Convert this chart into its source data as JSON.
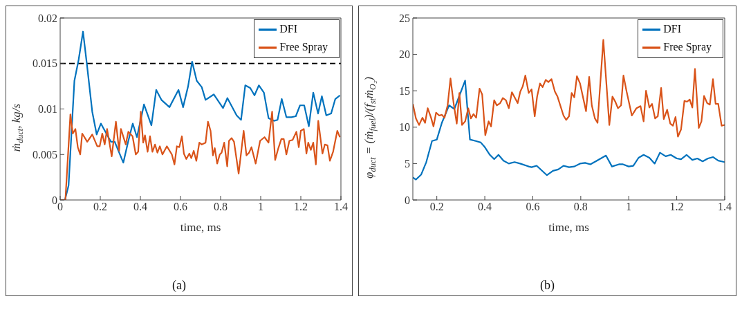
{
  "chart_data": [
    {
      "type": "line",
      "xlabel": "time, ms",
      "ylabel": "ṁ$_{duct}$, kg/s",
      "xlim": [
        0,
        1.4
      ],
      "ylim": [
        0,
        0.02
      ],
      "xticks": [
        0,
        0.2,
        0.4,
        0.6,
        0.8,
        1,
        1.2,
        1.4
      ],
      "yticks": [
        0,
        0.005,
        0.01,
        0.015,
        0.02
      ],
      "grid": false,
      "legend": "top right",
      "marker": "none",
      "line_style": "solid",
      "annotations": [
        "(a)"
      ],
      "ref_lines": [
        {
          "axis": "y",
          "value": 0.015,
          "label": null,
          "color": "#000000",
          "line_style": "dashed"
        }
      ],
      "series": [
        {
          "name": "DFI",
          "color": "#0072bd",
          "x": [
            0.024,
            0.042,
            0.071,
            0.092,
            0.114,
            0.135,
            0.16,
            0.182,
            0.203,
            0.228,
            0.253,
            0.272,
            0.315,
            0.34,
            0.362,
            0.383,
            0.418,
            0.455,
            0.479,
            0.505,
            0.545,
            0.59,
            0.613,
            0.638,
            0.658,
            0.681,
            0.706,
            0.725,
            0.766,
            0.812,
            0.834,
            0.88,
            0.902,
            0.923,
            0.948,
            0.969,
            0.991,
            1.016,
            1.039,
            1.066,
            1.084,
            1.105,
            1.128,
            1.153,
            1.175,
            1.196,
            1.217,
            1.24,
            1.262,
            1.286,
            1.305,
            1.327,
            1.351,
            1.372,
            1.395
          ],
          "values": [
            0,
            0.0016,
            0.0131,
            0.0154,
            0.0185,
            0.0146,
            0.0097,
            0.0072,
            0.0084,
            0.0074,
            0.0064,
            0.0064,
            0.0041,
            0.0065,
            0.0084,
            0.0069,
            0.0105,
            0.0082,
            0.0121,
            0.011,
            0.0102,
            0.0121,
            0.0102,
            0.0125,
            0.0152,
            0.0131,
            0.0124,
            0.011,
            0.0116,
            0.0101,
            0.0112,
            0.0093,
            0.0088,
            0.0126,
            0.0123,
            0.0115,
            0.0126,
            0.0118,
            0.009,
            0.0087,
            0.0088,
            0.0111,
            0.0091,
            0.0091,
            0.0092,
            0.0104,
            0.0104,
            0.0081,
            0.0118,
            0.0095,
            0.0114,
            0.0093,
            0.0095,
            0.0111,
            0.0115
          ]
        },
        {
          "name": "Free Spray",
          "color": "#d95319",
          "x": [
            0,
            0.026,
            0.051,
            0.063,
            0.076,
            0.088,
            0.1,
            0.11,
            0.135,
            0.16,
            0.185,
            0.197,
            0.21,
            0.222,
            0.234,
            0.257,
            0.278,
            0.294,
            0.303,
            0.327,
            0.34,
            0.361,
            0.377,
            0.389,
            0.402,
            0.414,
            0.423,
            0.436,
            0.448,
            0.46,
            0.473,
            0.485,
            0.497,
            0.51,
            0.532,
            0.557,
            0.57,
            0.582,
            0.594,
            0.607,
            0.617,
            0.629,
            0.644,
            0.654,
            0.666,
            0.679,
            0.694,
            0.706,
            0.725,
            0.737,
            0.75,
            0.762,
            0.771,
            0.783,
            0.796,
            0.805,
            0.818,
            0.833,
            0.842,
            0.855,
            0.867,
            0.89,
            0.915,
            0.929,
            0.942,
            0.954,
            0.975,
            0.997,
            1.019,
            1.039,
            1.057,
            1.072,
            1.088,
            1.103,
            1.115,
            1.128,
            1.143,
            1.159,
            1.178,
            1.19,
            1.2,
            1.215,
            1.228,
            1.237,
            1.25,
            1.262,
            1.275,
            1.287,
            1.308,
            1.32,
            1.333,
            1.345,
            1.361,
            1.382,
            1.395
          ],
          "values": [
            0,
            0,
            0.0094,
            0.0073,
            0.0078,
            0.0058,
            0.005,
            0.0073,
            0.0064,
            0.0072,
            0.0059,
            0.0059,
            0.0073,
            0.0061,
            0.0078,
            0.0048,
            0.0086,
            0.0054,
            0.0078,
            0.0061,
            0.0075,
            0.007,
            0.005,
            0.0053,
            0.0097,
            0.0063,
            0.0071,
            0.0053,
            0.007,
            0.0053,
            0.0061,
            0.0052,
            0.0059,
            0.005,
            0.0059,
            0.005,
            0.0039,
            0.0059,
            0.0058,
            0.007,
            0.0051,
            0.0045,
            0.0051,
            0.0046,
            0.0054,
            0.0043,
            0.0063,
            0.0061,
            0.0063,
            0.0086,
            0.0076,
            0.0049,
            0.0057,
            0.004,
            0.005,
            0.0052,
            0.0063,
            0.0037,
            0.0065,
            0.0068,
            0.0064,
            0.0029,
            0.0076,
            0.0049,
            0.0052,
            0.0058,
            0.004,
            0.0065,
            0.0069,
            0.0063,
            0.0097,
            0.0044,
            0.0057,
            0.0067,
            0.0067,
            0.005,
            0.0065,
            0.0066,
            0.0075,
            0.0058,
            0.0076,
            0.0078,
            0.0051,
            0.0063,
            0.0055,
            0.0063,
            0.0039,
            0.0087,
            0.0051,
            0.0061,
            0.006,
            0.0043,
            0.0053,
            0.0076,
            0.0069
          ]
        }
      ]
    },
    {
      "type": "line",
      "xlabel": "time, ms",
      "ylabel": "φ$_{duct}$ = (ṁ$_{fuel}$)/(f$_{st}$ṁ$_{O₂}$)",
      "xlim": [
        0.1,
        1.4
      ],
      "ylim": [
        0,
        25
      ],
      "xticks": [
        0.2,
        0.4,
        0.6,
        0.8,
        1,
        1.2,
        1.4
      ],
      "yticks": [
        0,
        5,
        10,
        15,
        20,
        25
      ],
      "grid": false,
      "legend": "top right",
      "marker": "none",
      "line_style": "solid",
      "annotations": [
        "(b)"
      ],
      "series": [
        {
          "name": "DFI",
          "color": "#0072bd",
          "x": [
            0.1,
            0.113,
            0.135,
            0.156,
            0.18,
            0.2,
            0.221,
            0.251,
            0.273,
            0.295,
            0.318,
            0.338,
            0.362,
            0.383,
            0.399,
            0.421,
            0.439,
            0.457,
            0.478,
            0.5,
            0.524,
            0.547,
            0.583,
            0.595,
            0.616,
            0.659,
            0.684,
            0.706,
            0.728,
            0.751,
            0.773,
            0.797,
            0.818,
            0.84,
            0.862,
            0.905,
            0.93,
            0.959,
            0.976,
            1,
            1.019,
            1.041,
            1.062,
            1.086,
            1.108,
            1.13,
            1.154,
            1.175,
            1.2,
            1.218,
            1.241,
            1.265,
            1.286,
            1.308,
            1.33,
            1.351,
            1.373,
            1.4
          ],
          "values": [
            3.1,
            2.8,
            3.5,
            5.2,
            8.1,
            8.3,
            10.6,
            13,
            12.5,
            14.4,
            16.4,
            8.3,
            8.1,
            7.9,
            7.3,
            6.2,
            5.6,
            6.2,
            5.4,
            5,
            5.2,
            5,
            4.6,
            4.5,
            4.7,
            3.4,
            4,
            4.2,
            4.7,
            4.5,
            4.6,
            5,
            5.1,
            4.9,
            5.3,
            6.1,
            4.6,
            4.9,
            4.9,
            4.6,
            4.7,
            5.8,
            6.2,
            5.8,
            5,
            6.5,
            6,
            6.2,
            5.7,
            5.6,
            6.2,
            5.5,
            5.7,
            5.3,
            5.7,
            5.9,
            5.4,
            5.2
          ]
        },
        {
          "name": "Free Spray",
          "color": "#d95319",
          "x": [
            0.1,
            0.113,
            0.126,
            0.14,
            0.151,
            0.162,
            0.176,
            0.186,
            0.197,
            0.21,
            0.221,
            0.232,
            0.245,
            0.257,
            0.27,
            0.283,
            0.294,
            0.305,
            0.318,
            0.331,
            0.342,
            0.353,
            0.364,
            0.378,
            0.389,
            0.402,
            0.416,
            0.426,
            0.439,
            0.45,
            0.464,
            0.475,
            0.488,
            0.5,
            0.513,
            0.526,
            0.537,
            0.548,
            0.558,
            0.569,
            0.583,
            0.595,
            0.608,
            0.618,
            0.63,
            0.641,
            0.654,
            0.665,
            0.678,
            0.692,
            0.703,
            0.728,
            0.739,
            0.751,
            0.762,
            0.773,
            0.784,
            0.797,
            0.822,
            0.835,
            0.846,
            0.859,
            0.87,
            0.894,
            0.919,
            0.932,
            0.944,
            0.955,
            0.968,
            0.978,
            0.991,
            1.013,
            1.032,
            1.049,
            1.062,
            1.072,
            1.086,
            1.097,
            1.11,
            1.121,
            1.135,
            1.146,
            1.16,
            1.173,
            1.184,
            1.195,
            1.205,
            1.218,
            1.232,
            1.243,
            1.254,
            1.265,
            1.276,
            1.292,
            1.303,
            1.314,
            1.327,
            1.338,
            1.351,
            1.362,
            1.373,
            1.387,
            1.4
          ],
          "values": [
            13.2,
            11.2,
            10.3,
            11.3,
            10.6,
            12.6,
            11.3,
            10.1,
            12,
            11.6,
            11.7,
            11.3,
            13,
            16.7,
            13.3,
            10.5,
            14.7,
            10.3,
            10.8,
            12.6,
            11.2,
            11.8,
            11.3,
            15.3,
            14.5,
            8.9,
            10.8,
            10.1,
            13.7,
            13,
            13.3,
            14,
            13.7,
            12.6,
            14.8,
            14,
            13.3,
            14.9,
            15.6,
            17.1,
            14.7,
            15.2,
            11.5,
            14.2,
            16,
            15.5,
            16.5,
            16.2,
            16.6,
            14.9,
            14.2,
            11.6,
            11,
            11.5,
            14.7,
            14.1,
            17,
            16,
            12.2,
            16.9,
            13,
            11.2,
            10.6,
            22,
            10.3,
            14.2,
            13.5,
            12.6,
            13,
            17.1,
            14.9,
            11.6,
            12.6,
            12.9,
            10.8,
            15,
            12.7,
            13.2,
            11.2,
            11.5,
            15.4,
            11.1,
            12.4,
            10.5,
            10.2,
            11.4,
            8.7,
            9.7,
            13.6,
            13.5,
            13.8,
            12.7,
            18,
            9.9,
            10.8,
            14.3,
            13.3,
            13.1,
            16.6,
            13.2,
            13.2,
            10.2,
            10.3
          ]
        }
      ]
    }
  ]
}
